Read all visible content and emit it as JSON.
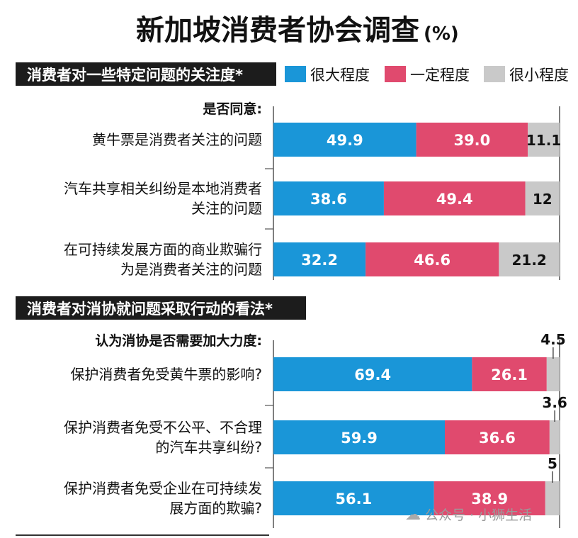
{
  "title": "新加坡消费者协会调查",
  "title_unit": "(%)",
  "legend": [
    {
      "label": "很大程度",
      "color": "#1a96d8"
    },
    {
      "label": "一定程度",
      "color": "#e04a6e"
    },
    {
      "label": "很小程度",
      "color": "#c9c9c9"
    }
  ],
  "watermark": "公众号 · 小狮生活",
  "chart_data": [
    {
      "type": "bar",
      "stacked": true,
      "orientation": "horizontal",
      "title": "消费者对一些特定问题的关注度*",
      "subtitle": "是否同意:",
      "categories": [
        [
          "黄牛票是消费者关注的问题"
        ],
        [
          "汽车共享相关纠纷是本地消费者",
          "关注的问题"
        ],
        [
          "在可持续发展方面的商业欺骗行",
          "为是消费者关注的问题"
        ]
      ],
      "series": [
        {
          "name": "很大程度",
          "values": [
            49.9,
            38.6,
            32.2
          ]
        },
        {
          "name": "一定程度",
          "values": [
            39.0,
            49.4,
            46.6
          ]
        },
        {
          "name": "很小程度",
          "values": [
            11.1,
            12,
            21.2
          ]
        }
      ],
      "labels": [
        [
          "49.9",
          "38.6",
          "32.2"
        ],
        [
          "39.0",
          "49.4",
          "46.6"
        ],
        [
          "11.1",
          "12",
          "21.2"
        ]
      ],
      "xlim": [
        0,
        100
      ]
    },
    {
      "type": "bar",
      "stacked": true,
      "orientation": "horizontal",
      "title": "消费者对消协就问题采取行动的看法*",
      "subtitle": "认为消协是否需要加大力度:",
      "categories": [
        [
          "保护消费者免受黄牛票的影响?"
        ],
        [
          "保护消费者免受不公平、不合理",
          "的汽车共享纠纷?"
        ],
        [
          "保护消费者免受企业在可持续发",
          "展方面的欺骗?"
        ]
      ],
      "series": [
        {
          "name": "很大程度",
          "values": [
            69.4,
            59.9,
            56.1
          ]
        },
        {
          "name": "一定程度",
          "values": [
            26.1,
            36.6,
            38.9
          ]
        },
        {
          "name": "很小程度",
          "values": [
            4.5,
            3.6,
            5
          ]
        }
      ],
      "labels": [
        [
          "69.4",
          "59.9",
          "56.1"
        ],
        [
          "26.1",
          "36.6",
          "38.9"
        ],
        [
          "4.5",
          "3.6",
          "5"
        ]
      ],
      "xlim": [
        0,
        100
      ]
    }
  ]
}
